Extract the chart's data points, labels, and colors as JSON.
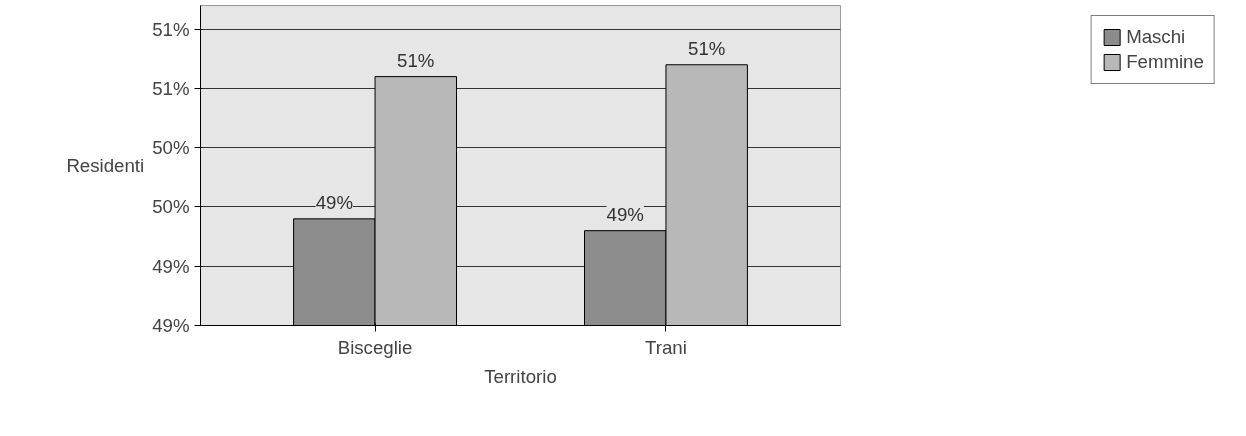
{
  "chart_data": {
    "type": "bar",
    "xlabel": "Territorio",
    "ylabel": "Residenti",
    "categories": [
      "Bisceglie",
      "Trani"
    ],
    "series": [
      {
        "name": "Maschi",
        "color": "#8c8c8c",
        "values": [
          49.4,
          49.3
        ],
        "value_labels": [
          "49%",
          "49%"
        ]
      },
      {
        "name": "Femmine",
        "color": "#b8b8b8",
        "values": [
          50.6,
          50.7
        ],
        "value_labels": [
          "51%",
          "51%"
        ]
      }
    ],
    "ylim": [
      48.5,
      51.2
    ],
    "yticks": [
      {
        "value": 48.5,
        "label": "49%"
      },
      {
        "value": 49.0,
        "label": "49%"
      },
      {
        "value": 49.5,
        "label": "50%"
      },
      {
        "value": 50.0,
        "label": "50%"
      },
      {
        "value": 50.5,
        "label": "51%"
      },
      {
        "value": 51.0,
        "label": "51%"
      }
    ],
    "grid": "y",
    "legend": "right"
  }
}
